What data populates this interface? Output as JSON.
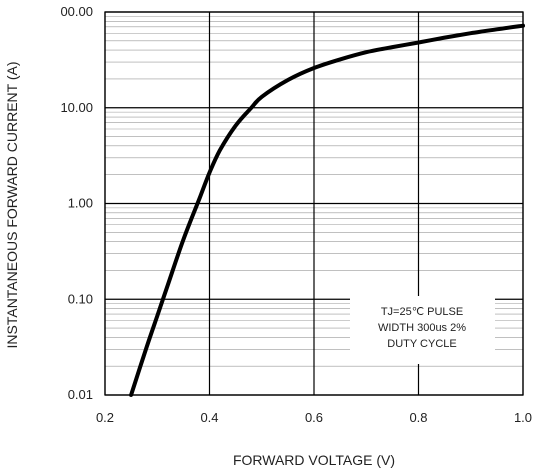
{
  "chart_data": {
    "type": "line",
    "xlabel": "FORWARD VOLTAGE (V)",
    "ylabel": "INSTANTANEOUS FORWARD CURRENT (A)",
    "x_scale": "linear",
    "y_scale": "log",
    "xlim": [
      0.2,
      1.0
    ],
    "ylim": [
      0.01,
      100
    ],
    "x_ticks": [
      "0.2",
      "0.4",
      "0.6",
      "0.8",
      "1.0"
    ],
    "y_ticks": [
      "0.01",
      "0.10",
      "1.00",
      "10.00",
      "00.00"
    ],
    "grid": true,
    "series": [
      {
        "x": [
          0.25,
          0.28,
          0.3,
          0.32,
          0.35,
          0.38,
          0.4,
          0.42,
          0.45,
          0.48,
          0.5,
          0.55,
          0.6,
          0.65,
          0.7,
          0.75,
          0.8,
          0.85,
          0.9,
          0.95,
          1.0
        ],
        "y": [
          0.01,
          0.032,
          0.067,
          0.14,
          0.42,
          1.1,
          2.1,
          3.6,
          6.5,
          10.0,
          13.0,
          19.5,
          26.0,
          32.0,
          38.0,
          43.0,
          48.0,
          54.0,
          60.0,
          66.0,
          72.0
        ]
      }
    ],
    "annotation": [
      "TJ=25℃ PULSE",
      "WIDTH 300us 2%",
      "DUTY CYCLE"
    ]
  }
}
